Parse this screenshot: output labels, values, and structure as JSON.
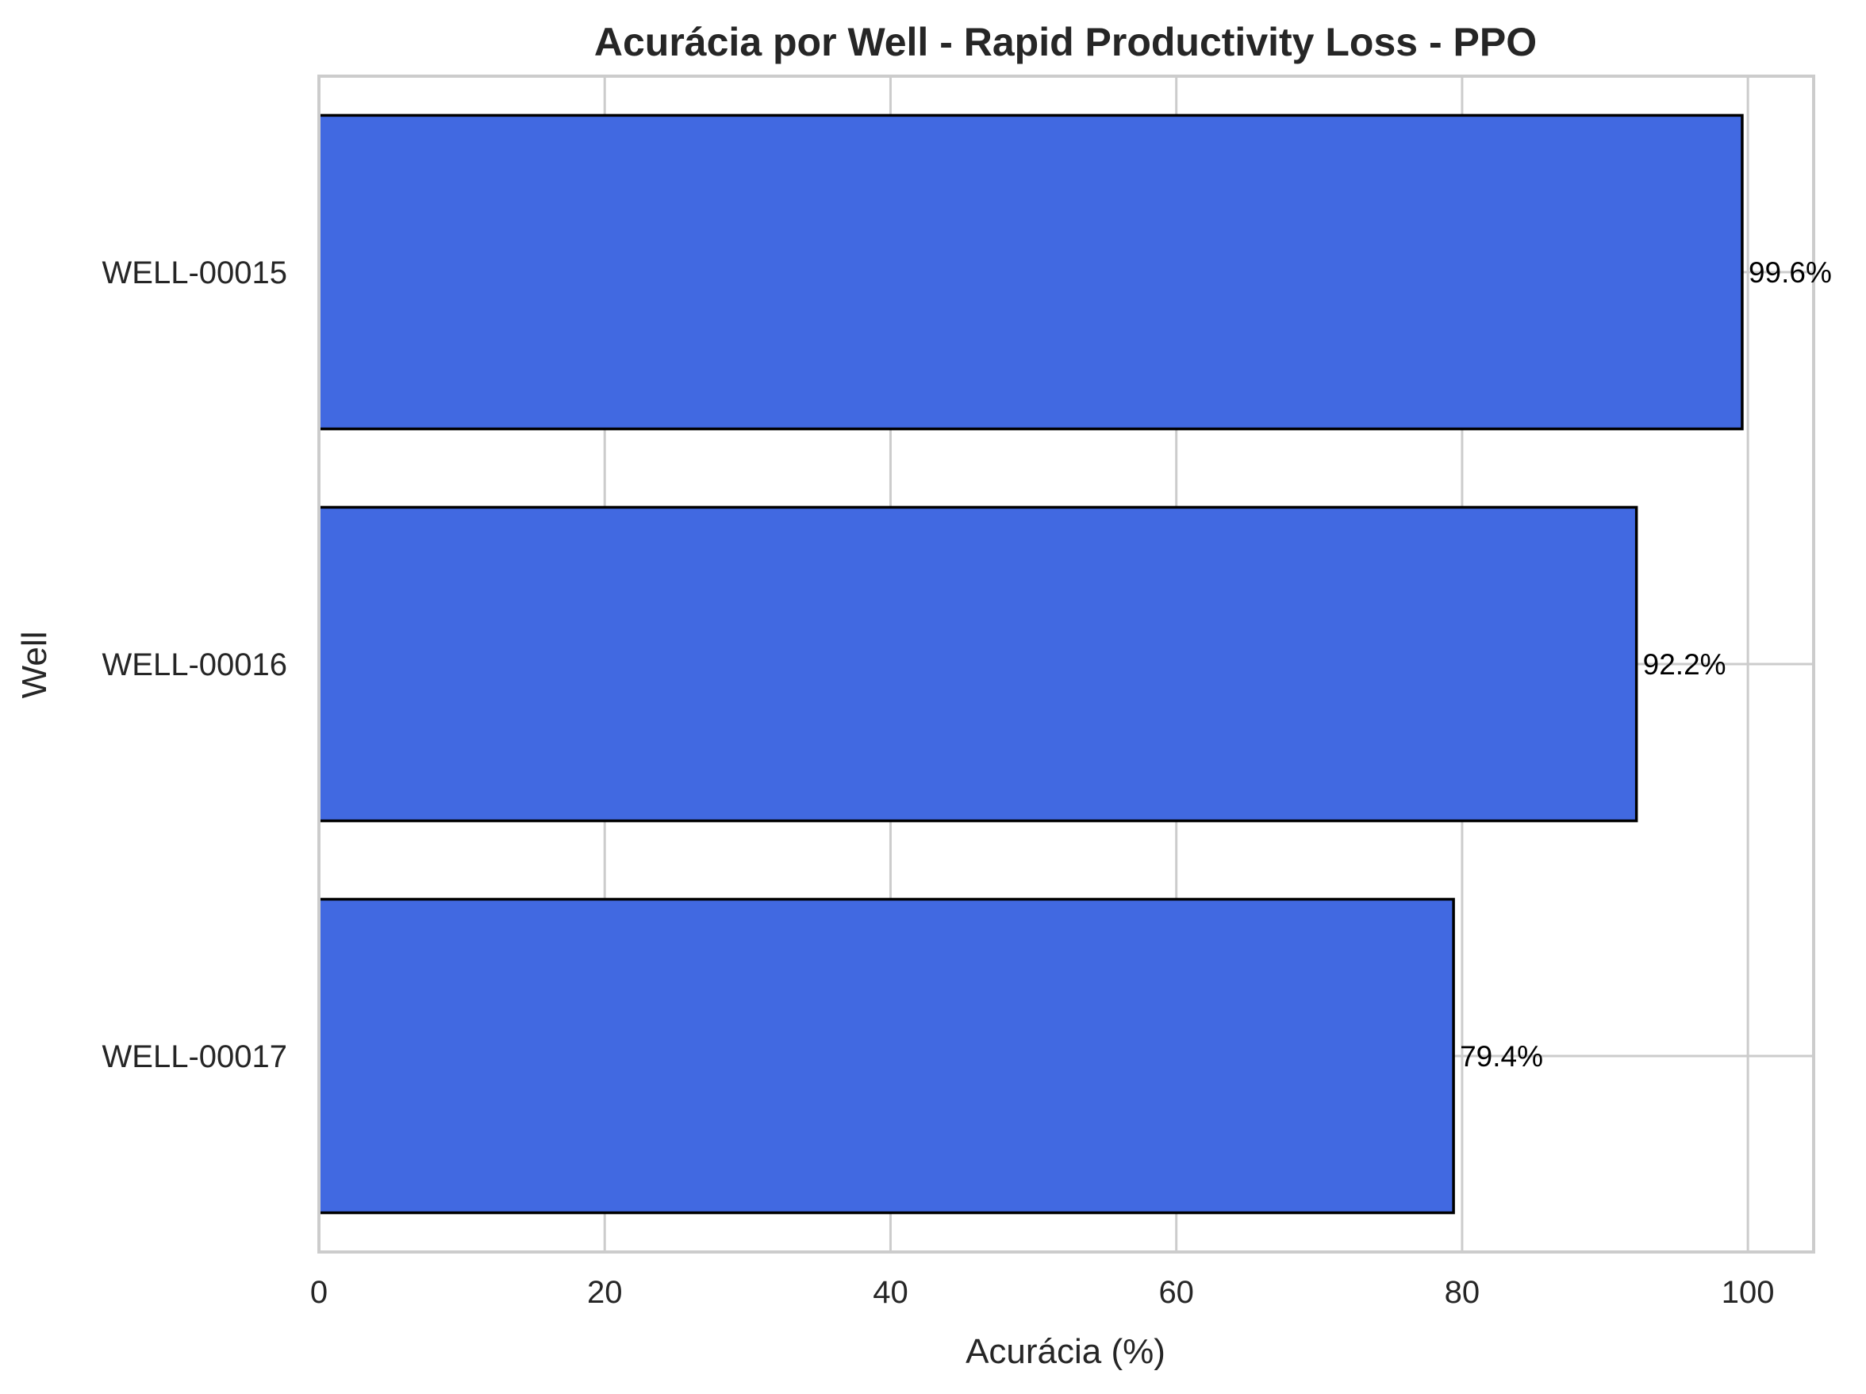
{
  "chart_data": {
    "type": "bar",
    "orientation": "horizontal",
    "title": "Acurácia por Well - Rapid Productivity Loss - PPO",
    "xlabel": "Acurácia (%)",
    "ylabel": "Well",
    "categories": [
      "WELL-00015",
      "WELL-00016",
      "WELL-00017"
    ],
    "values": [
      99.6,
      92.2,
      79.4
    ],
    "value_labels": [
      "99.6%",
      "92.2%",
      "79.4%"
    ],
    "xlim": [
      0,
      104.6
    ],
    "xticks": [
      0,
      20,
      40,
      60,
      80,
      100
    ],
    "xtick_labels": [
      "0",
      "20",
      "40",
      "60",
      "80",
      "100"
    ],
    "grid": true,
    "legend": "none",
    "bar_color": "#4169e1",
    "bar_edge_color": "#000000",
    "grid_color": "#cccccc"
  }
}
